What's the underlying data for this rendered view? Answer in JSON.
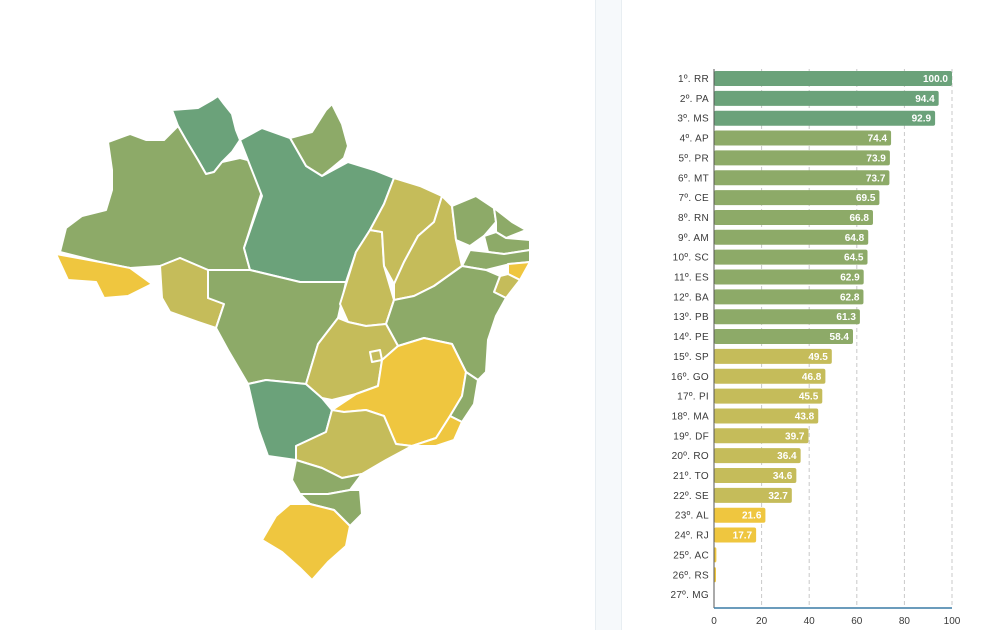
{
  "colors": {
    "top": "#6ba27a",
    "high": "#8daa68",
    "mid": "#c5bc5a",
    "low": "#efc63f",
    "grid": "#c9c9c9",
    "axis": "#3a7ca5",
    "divider": "#f6f9fb"
  },
  "map": {
    "states": [
      {
        "id": "RR",
        "value": 100.0
      },
      {
        "id": "PA",
        "value": 94.4
      },
      {
        "id": "MS",
        "value": 92.9
      },
      {
        "id": "AP",
        "value": 74.4
      },
      {
        "id": "PR",
        "value": 73.9
      },
      {
        "id": "MT",
        "value": 73.7
      },
      {
        "id": "CE",
        "value": 69.5
      },
      {
        "id": "RN",
        "value": 66.8
      },
      {
        "id": "AM",
        "value": 64.8
      },
      {
        "id": "SC",
        "value": 64.5
      },
      {
        "id": "ES",
        "value": 62.9
      },
      {
        "id": "BA",
        "value": 62.8
      },
      {
        "id": "PB",
        "value": 61.3
      },
      {
        "id": "PE",
        "value": 58.4
      },
      {
        "id": "SP",
        "value": 49.5
      },
      {
        "id": "GO",
        "value": 46.8
      },
      {
        "id": "PI",
        "value": 45.5
      },
      {
        "id": "MA",
        "value": 43.8
      },
      {
        "id": "DF",
        "value": 39.7
      },
      {
        "id": "RO",
        "value": 36.4
      },
      {
        "id": "TO",
        "value": 34.6
      },
      {
        "id": "SE",
        "value": 32.7
      },
      {
        "id": "AL",
        "value": 21.6
      },
      {
        "id": "RJ",
        "value": 17.7
      },
      {
        "id": "AC",
        "value": 1.0
      },
      {
        "id": "RS",
        "value": 0.3
      },
      {
        "id": "MG",
        "value": 0.0
      }
    ]
  },
  "chart_data": {
    "type": "bar",
    "orientation": "horizontal",
    "categories": [
      "1º. RR",
      "2º. PA",
      "3º. MS",
      "4º. AP",
      "5º. PR",
      "6º. MT",
      "7º. CE",
      "8º. RN",
      "9º. AM",
      "10º. SC",
      "11º. ES",
      "12º. BA",
      "13º. PB",
      "14º. PE",
      "15º. SP",
      "16º. GO",
      "17º. PI",
      "18º. MA",
      "19º. DF",
      "20º. RO",
      "21º. TO",
      "22º. SE",
      "23º. AL",
      "24º. RJ",
      "25º. AC",
      "26º. RS",
      "27º. MG"
    ],
    "values": [
      100.0,
      94.4,
      92.9,
      74.4,
      73.9,
      73.7,
      69.5,
      66.8,
      64.8,
      64.5,
      62.9,
      62.8,
      61.3,
      58.4,
      49.5,
      46.8,
      45.5,
      43.8,
      39.7,
      36.4,
      34.6,
      32.7,
      21.6,
      17.7,
      1.0,
      0.3,
      0.0
    ],
    "value_labels": [
      "100.0",
      "94.4",
      "92.9",
      "74.4",
      "73.9",
      "73.7",
      "69.5",
      "66.8",
      "64.8",
      "64.5",
      "62.9",
      "62.8",
      "61.3",
      "58.4",
      "49.5",
      "46.8",
      "45.5",
      "43.8",
      "39.7",
      "36.4",
      "34.6",
      "32.7",
      "21.6",
      "17.7",
      "",
      "",
      ""
    ],
    "xlim": [
      0,
      100
    ],
    "xticks": [
      "0",
      "20",
      "40",
      "60",
      "80",
      "100"
    ],
    "grid": "vertical dashed",
    "title": "",
    "xlabel": "",
    "ylabel": ""
  }
}
